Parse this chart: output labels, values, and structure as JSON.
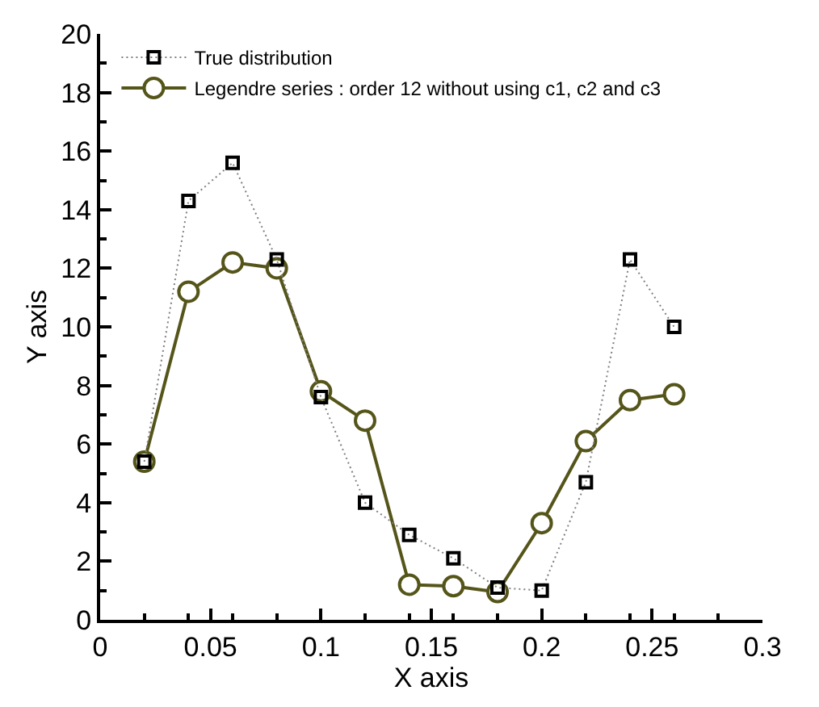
{
  "chart_data": {
    "type": "line",
    "xlabel": "X axis",
    "ylabel": "Y axis",
    "xlim": [
      0,
      0.3
    ],
    "xticks": [
      0,
      0.05,
      0.1,
      0.15,
      0.2,
      0.25,
      0.3
    ],
    "ylim": [
      0,
      20
    ],
    "yticks": [
      0,
      2,
      4,
      6,
      8,
      10,
      12,
      14,
      16,
      18,
      20
    ],
    "legend": "top left",
    "x": [
      0.02,
      0.04,
      0.06,
      0.08,
      0.1,
      0.12,
      0.14,
      0.16,
      0.18,
      0.2,
      0.22,
      0.24,
      0.26
    ],
    "series": [
      {
        "name": "True distribution",
        "color": "#000000",
        "marker": "square",
        "line_style": "dotted",
        "values": [
          5.4,
          14.3,
          15.6,
          12.3,
          7.6,
          4.0,
          2.9,
          2.1,
          1.1,
          1.0,
          4.7,
          12.3,
          10.0
        ]
      },
      {
        "name": "Legendre series : order 12 without using c1, c2 and c3",
        "color": "#55551a",
        "marker": "circle",
        "line_style": "solid",
        "values": [
          5.4,
          11.2,
          12.2,
          12.0,
          7.8,
          6.8,
          1.2,
          1.15,
          0.95,
          3.3,
          6.1,
          7.5,
          7.7
        ]
      }
    ]
  }
}
